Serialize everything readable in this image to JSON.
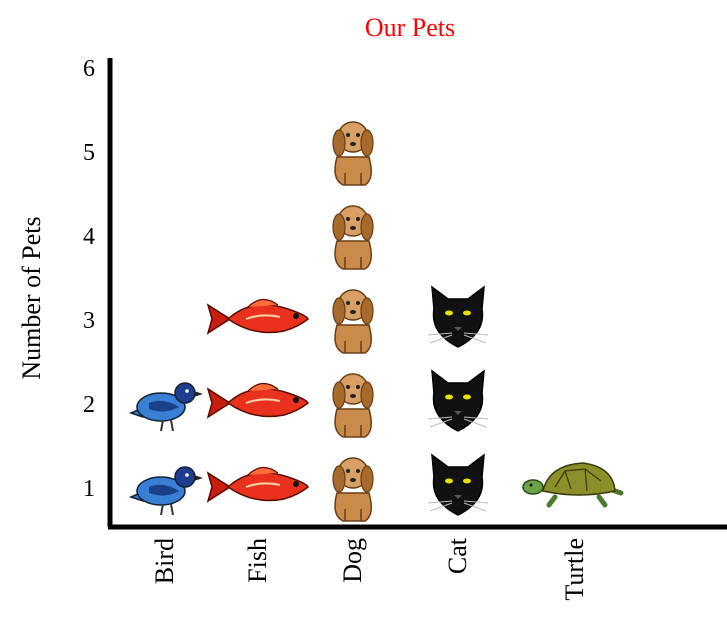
{
  "chart_data": {
    "type": "pictograph",
    "title": "Our Pets",
    "ylabel": "Number of Pets",
    "xlabel": "",
    "categories": [
      "Bird",
      "Fish",
      "Dog",
      "Cat",
      "Turtle"
    ],
    "values": [
      2,
      3,
      5,
      3,
      1
    ],
    "ylim": [
      0,
      6
    ],
    "yticks": [
      1,
      2,
      3,
      4,
      5,
      6
    ],
    "grid": false,
    "icons": [
      "bird-icon",
      "fish-icon",
      "dog-icon",
      "cat-icon",
      "turtle-icon"
    ],
    "colors": {
      "title": "#ff0000",
      "axis": "#000000",
      "bird": "#3a7fd6",
      "fish": "#e8321e",
      "dog": "#c98b4a",
      "cat": "#111111",
      "turtle": "#4c7a2c"
    }
  }
}
